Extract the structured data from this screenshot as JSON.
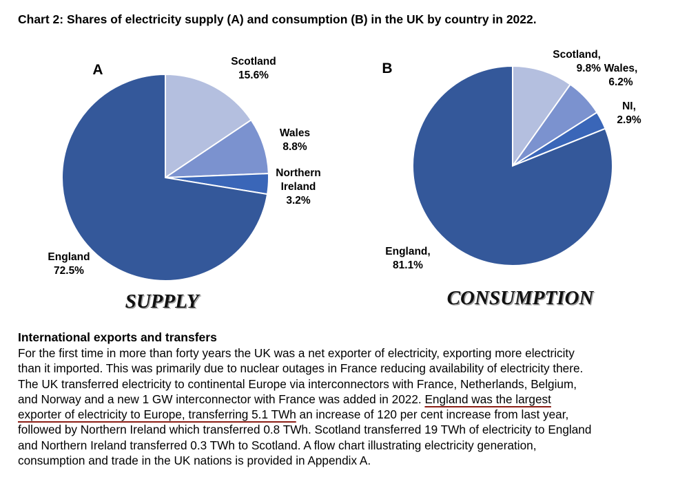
{
  "title": "Chart 2: Shares of electricity supply (A) and consumption (B) in the UK by country in 2022.",
  "colors": {
    "england": "#34589a",
    "scotland": "#b4bfdf",
    "wales": "#7b92cf",
    "northern_ireland": "#3a66b8",
    "edge": "#ffffff"
  },
  "chart_data": [
    {
      "type": "pie",
      "panel": "A",
      "caption": "SUPPLY",
      "slices": [
        {
          "name": "Scotland",
          "value": 15.6,
          "label_lines": [
            "Scotland",
            "15.6%"
          ]
        },
        {
          "name": "Wales",
          "value": 8.8,
          "label_lines": [
            "Wales",
            "8.8%"
          ]
        },
        {
          "name": "Northern Ireland",
          "value": 3.2,
          "label_lines": [
            "Northern",
            "Ireland",
            "3.2%"
          ]
        },
        {
          "name": "England",
          "value": 72.5,
          "label_lines": [
            "England",
            "72.5%"
          ]
        }
      ]
    },
    {
      "type": "pie",
      "panel": "B",
      "caption": "CONSUMPTION",
      "slices": [
        {
          "name": "Scotland",
          "value": 9.8,
          "label_lines": [
            "Scotland,",
            "9.8%"
          ]
        },
        {
          "name": "Wales",
          "value": 6.2,
          "label_lines": [
            "Wales,",
            "6.2%"
          ]
        },
        {
          "name": "NI",
          "value": 2.9,
          "label_lines": [
            "NI,",
            "2.9%"
          ]
        },
        {
          "name": "England",
          "value": 81.1,
          "label_lines": [
            "England,",
            "81.1%"
          ]
        }
      ]
    }
  ],
  "section": {
    "heading": "International exports and transfers",
    "lines": [
      [
        {
          "text": "For the first time in more than forty years the UK was a net exporter of electricity, exporting more electricity"
        }
      ],
      [
        {
          "text": "than it imported. This was primarily due to nuclear outages in France reducing availability of electricity there."
        }
      ],
      [
        {
          "text": "The UK transferred electricity to continental Europe via interconnectors with France, Netherlands, Belgium,"
        }
      ],
      [
        {
          "text": "and Norway and a new 1 GW interconnector with France was added in 2022. "
        },
        {
          "text": "England was the largest",
          "underline": true
        }
      ],
      [
        {
          "text": "exporter of electricity to Europe, transferring 5.1 TWh",
          "underline": true
        },
        {
          "text": " an increase of 120 per cent increase from last year,"
        }
      ],
      [
        {
          "text": "followed by Northern Ireland which transferred 0.8 TWh. Scotland transferred 19 TWh of electricity to England"
        }
      ],
      [
        {
          "text": "and Northern Ireland transferred 0.3 TWh to Scotland.  A flow chart illustrating electricity generation,"
        }
      ],
      [
        {
          "text": "consumption and trade in the UK nations is provided in Appendix A."
        }
      ]
    ]
  }
}
